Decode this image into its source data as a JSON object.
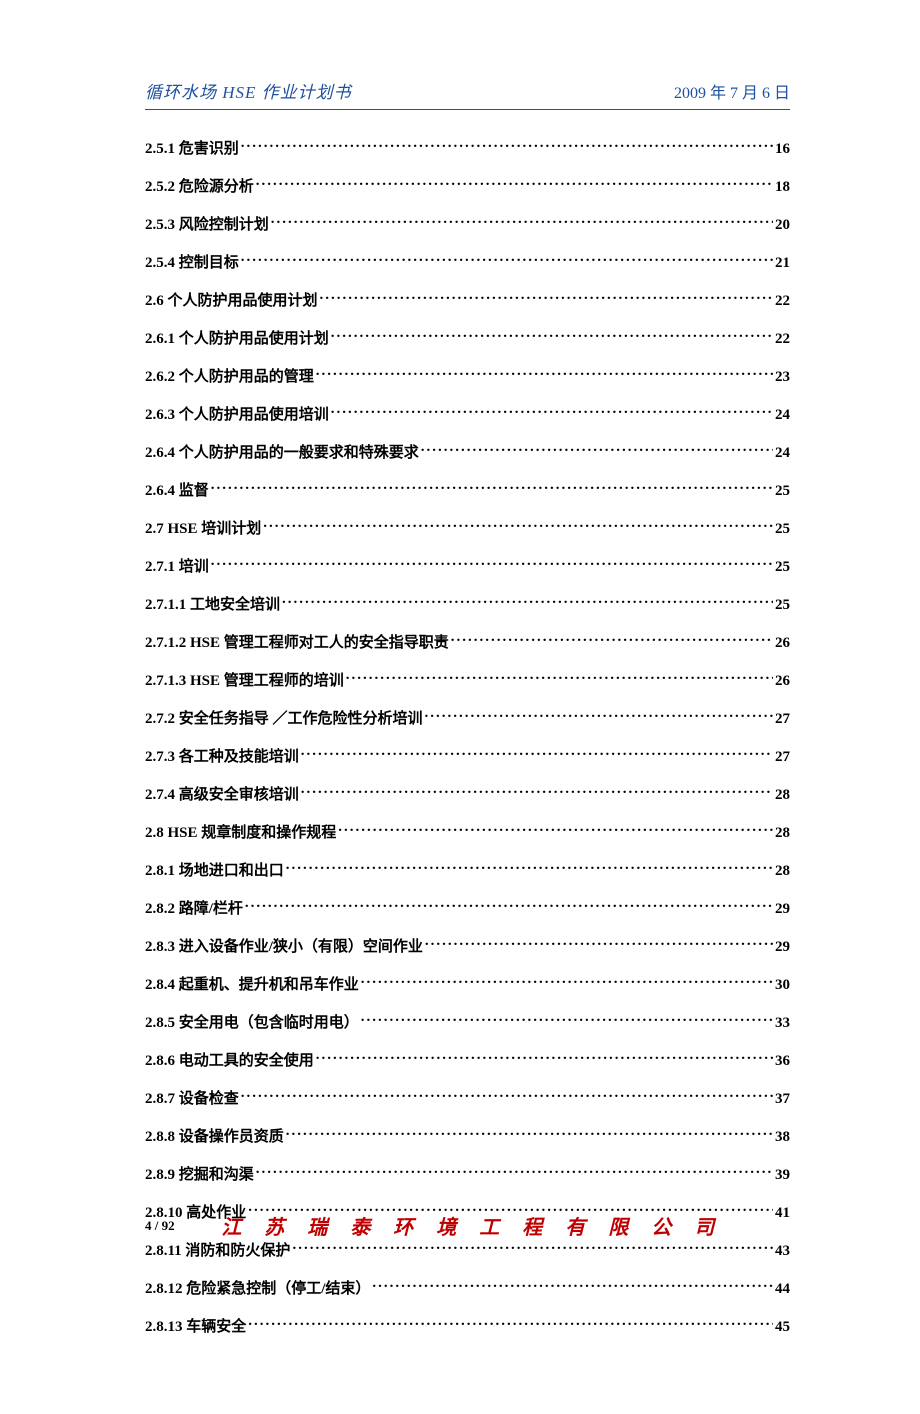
{
  "header": {
    "left": "循环水场 HSE 作业计划书",
    "right": "2009 年 7 月 6 日"
  },
  "colors": {
    "header_text": "#2050a0",
    "header_border": "#2050a0",
    "toc_text": "#000000",
    "company_text": "#c00000",
    "background": "#ffffff"
  },
  "typography": {
    "header_left_font": "KaiTi",
    "header_left_size": 17,
    "header_right_size": 16,
    "toc_font": "SimSun",
    "toc_size": 15,
    "toc_weight": "bold",
    "company_font": "KaiTi",
    "company_size": 20,
    "page_number_size": 13
  },
  "toc": [
    {
      "title": "2.5.1 危害识别",
      "page": "16"
    },
    {
      "title": "2.5.2 危险源分析",
      "page": "18"
    },
    {
      "title": "2.5.3 风险控制计划",
      "page": "20"
    },
    {
      "title": "2.5.4 控制目标",
      "page": "21"
    },
    {
      "title": "2.6 个人防护用品使用计划",
      "page": "22"
    },
    {
      "title": "2.6.1 个人防护用品使用计划",
      "page": "22"
    },
    {
      "title": "2.6.2 个人防护用品的管理",
      "page": "23"
    },
    {
      "title": "2.6.3 个人防护用品使用培训",
      "page": "24"
    },
    {
      "title": "2.6.4 个人防护用品的一般要求和特殊要求",
      "page": "24"
    },
    {
      "title": "2.6.4 监督",
      "page": "25"
    },
    {
      "title": "2.7 HSE 培训计划",
      "page": "25"
    },
    {
      "title": "2.7.1 培训",
      "page": "25"
    },
    {
      "title": "2.7.1.1 工地安全培训",
      "page": "25"
    },
    {
      "title": "2.7.1.2 HSE 管理工程师对工人的安全指导职责",
      "page": "26"
    },
    {
      "title": "2.7.1.3 HSE 管理工程师的培训",
      "page": "26"
    },
    {
      "title": "2.7.2 安全任务指导 ／工作危险性分析培训",
      "page": "27"
    },
    {
      "title": "2.7.3  各工种及技能培训",
      "page": "27"
    },
    {
      "title": "2.7.4  高级安全审核培训",
      "page": "28"
    },
    {
      "title": "2.8 HSE 规章制度和操作规程",
      "page": "28"
    },
    {
      "title": "2.8.1  场地进口和出口",
      "page": "28"
    },
    {
      "title": "2.8.2  路障/栏杆",
      "page": "29"
    },
    {
      "title": "2.8.3  进入设备作业/狭小（有限）空间作业",
      "page": "29"
    },
    {
      "title": "2.8.4  起重机、提升机和吊车作业",
      "page": "30"
    },
    {
      "title": "2.8.5  安全用电（包含临时用电）",
      "page": "33"
    },
    {
      "title": "2.8.6  电动工具的安全使用",
      "page": "36"
    },
    {
      "title": "2.8.7  设备检查",
      "page": "37"
    },
    {
      "title": "2.8.8  设备操作员资质",
      "page": "38"
    },
    {
      "title": "2.8.9  挖掘和沟渠",
      "page": "39"
    },
    {
      "title": "2.8.10  高处作业",
      "page": "41"
    },
    {
      "title": "2.8.11  消防和防火保护",
      "page": "43"
    },
    {
      "title": "2.8.12  危险紧急控制（停工/结束）",
      "page": "44"
    },
    {
      "title": "2.8.13  车辆安全",
      "page": "45"
    }
  ],
  "footer": {
    "page_number": "4 / 92",
    "company": "江 苏 瑞 泰 环 境 工 程 有 限 公 司"
  }
}
